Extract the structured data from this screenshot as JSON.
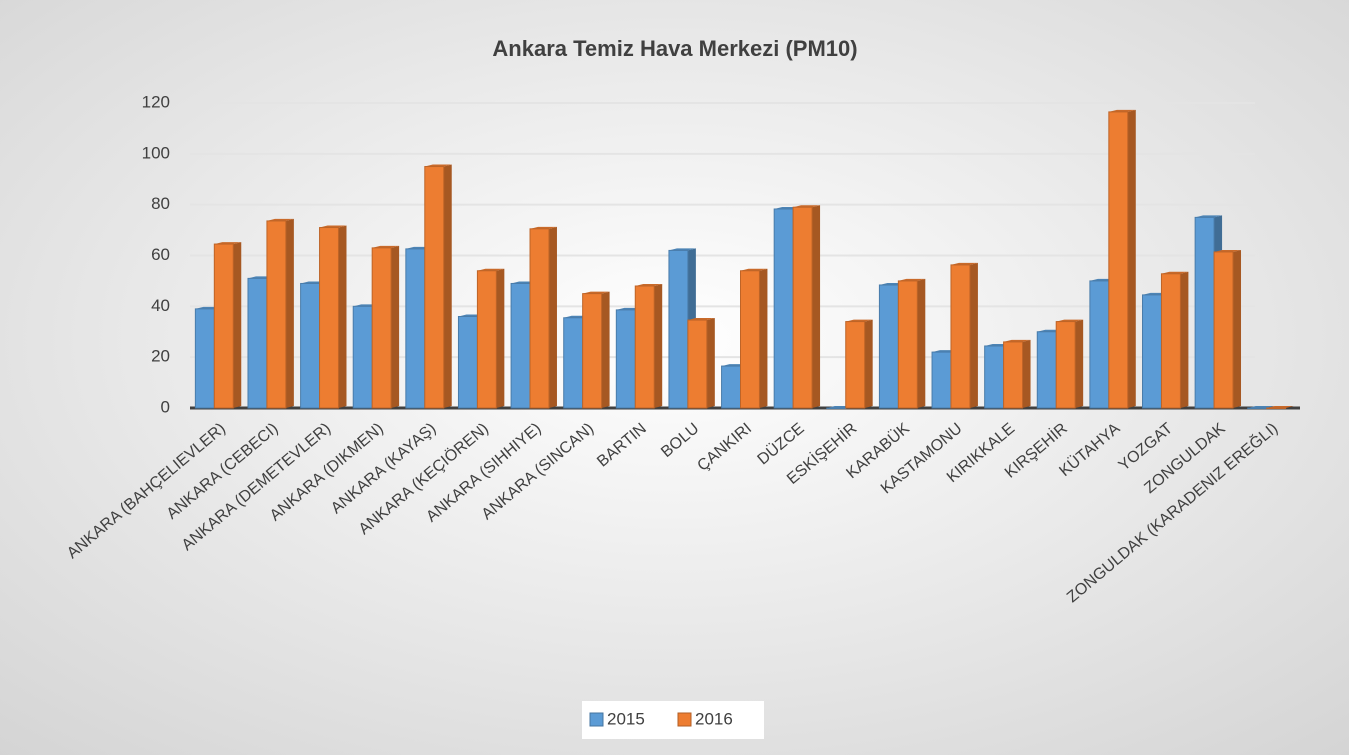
{
  "chart_data": {
    "type": "bar",
    "title": "Ankara Temiz Hava Merkezi (PM10)",
    "categories": [
      "ANKARA (BAHÇELIEVLER)",
      "ANKARA (CEBECI)",
      "ANKARA (DEMETEVLER)",
      "ANKARA (DIKMEN)",
      "ANKARA (KAYAŞ)",
      "ANKARA (KEÇIÖREN)",
      "ANKARA (SIHHIYE)",
      "ANKARA (SINCAN)",
      "BARTIN",
      "BOLU",
      "ÇANKIRI",
      "DÜZCE",
      "ESKİŞEHİR",
      "KARABÜK",
      "KASTAMONU",
      "KIRIKKALE",
      "KIRŞEHİR",
      "KÜTAHYA",
      "YOZGAT",
      "ZONGULDAK",
      "ZONGULDAK (KARADENIZ EREĞLI)"
    ],
    "series": [
      {
        "name": "2015",
        "color": "#5b9bd5",
        "values": [
          39,
          51,
          49,
          40,
          62.6,
          36,
          49,
          35.5,
          38.6,
          62,
          16.5,
          78.3,
          0,
          48.4,
          22,
          24.4,
          30,
          50,
          44.5,
          75,
          0
        ]
      },
      {
        "name": "2016",
        "color": "#ed7d31",
        "values": [
          64.5,
          73.6,
          71,
          63,
          95,
          54,
          70.5,
          45,
          48,
          34.6,
          54,
          79,
          34,
          50,
          56.3,
          26,
          34,
          116.5,
          52.8,
          61.4,
          0
        ]
      }
    ],
    "ylim": [
      0,
      120
    ],
    "yticks": [
      0,
      20,
      40,
      60,
      80,
      100,
      120
    ],
    "grid": true,
    "legend": "bottom"
  }
}
